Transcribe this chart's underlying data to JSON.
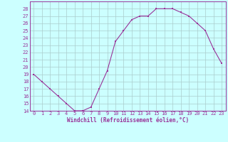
{
  "x": [
    0,
    1,
    2,
    3,
    4,
    5,
    6,
    7,
    8,
    9,
    10,
    11,
    12,
    13,
    14,
    15,
    16,
    17,
    18,
    19,
    20,
    21,
    22,
    23
  ],
  "y": [
    19,
    18,
    17,
    16,
    15,
    14,
    14,
    14.5,
    17,
    19.5,
    23.5,
    25,
    26.5,
    27,
    27,
    28,
    28,
    28,
    27.5,
    27,
    26,
    25,
    22.5,
    20.5
  ],
  "line_color": "#993399",
  "marker": "s",
  "marker_size": 2,
  "bg_color": "#ccffff",
  "grid_color": "#aacccc",
  "axis_color": "#993399",
  "xlabel": "Windchill (Refroidissement éolien,°C)",
  "ylim": [
    14,
    29
  ],
  "xlim": [
    -0.5,
    23.5
  ],
  "yticks": [
    14,
    15,
    16,
    17,
    18,
    19,
    20,
    21,
    22,
    23,
    24,
    25,
    26,
    27,
    28
  ],
  "xticks": [
    0,
    1,
    2,
    3,
    4,
    5,
    6,
    7,
    8,
    9,
    10,
    11,
    12,
    13,
    14,
    15,
    16,
    17,
    18,
    19,
    20,
    21,
    22,
    23
  ],
  "tick_fontsize": 5,
  "xlabel_fontsize": 5.5
}
